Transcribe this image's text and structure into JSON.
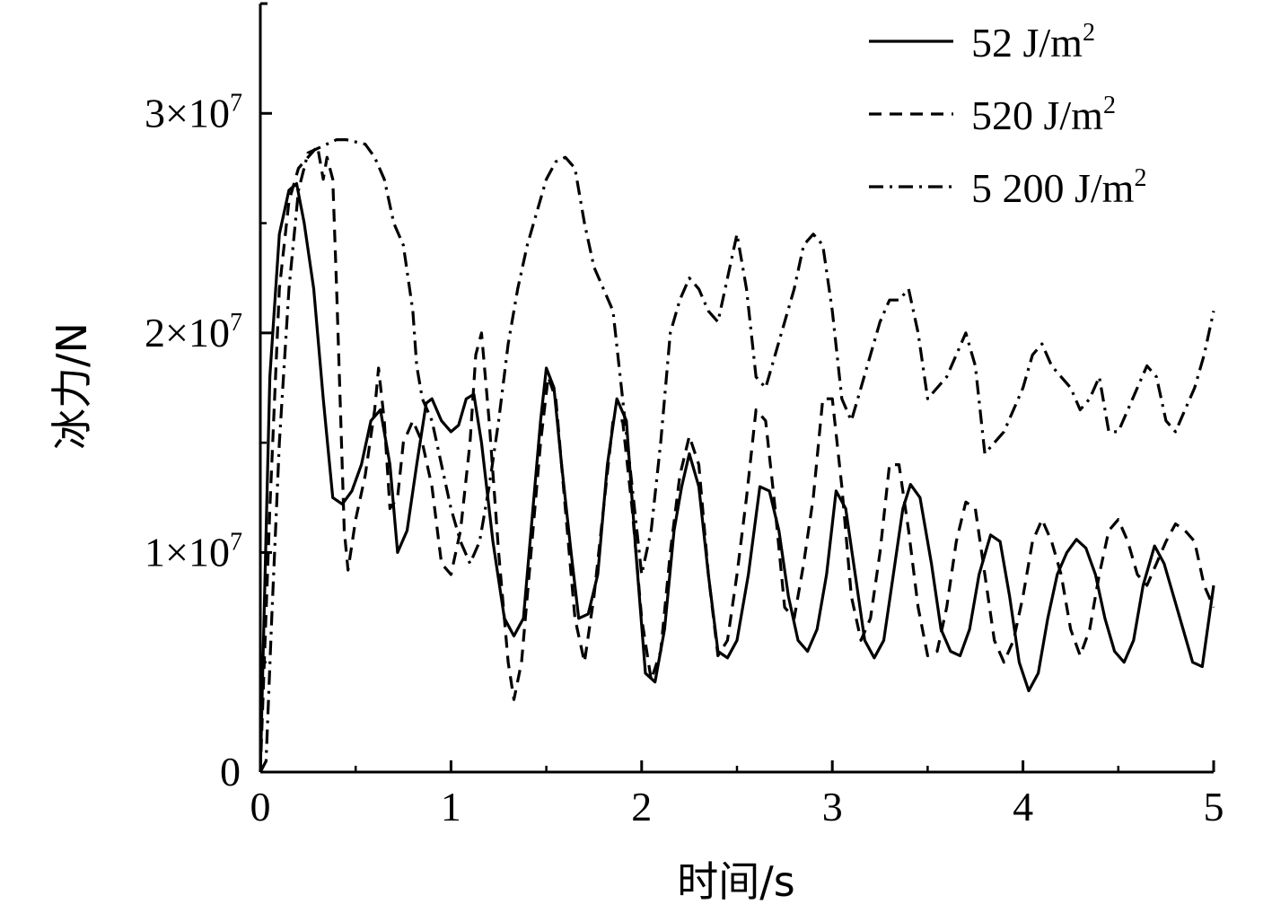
{
  "chart_data": {
    "type": "line",
    "xlabel": "时间/s",
    "ylabel": "冰力/N",
    "xlim": [
      0,
      5
    ],
    "ylim": [
      0,
      35000000
    ],
    "grid": false,
    "legend_position": "top-right",
    "x_ticks": [
      {
        "value": 0,
        "label": "0"
      },
      {
        "value": 1,
        "label": "1"
      },
      {
        "value": 2,
        "label": "2"
      },
      {
        "value": 3,
        "label": "3"
      },
      {
        "value": 4,
        "label": "4"
      },
      {
        "value": 5,
        "label": "5"
      }
    ],
    "y_ticks": [
      {
        "value": 0,
        "mantissa": "0",
        "exp": ""
      },
      {
        "value": 10000000,
        "mantissa": "1×10",
        "exp": "7"
      },
      {
        "value": 20000000,
        "mantissa": "2×10",
        "exp": "7"
      },
      {
        "value": 30000000,
        "mantissa": "3×10",
        "exp": "7"
      }
    ],
    "series": [
      {
        "name": "52 J/m",
        "name_sup": "2",
        "dash": "solid",
        "color": "#000000",
        "x": [
          0,
          0.05,
          0.1,
          0.15,
          0.19,
          0.23,
          0.28,
          0.33,
          0.38,
          0.43,
          0.48,
          0.53,
          0.58,
          0.63,
          0.68,
          0.72,
          0.77,
          0.82,
          0.87,
          0.9,
          0.95,
          1.0,
          1.04,
          1.08,
          1.12,
          1.16,
          1.22,
          1.28,
          1.33,
          1.38,
          1.43,
          1.47,
          1.5,
          1.54,
          1.58,
          1.63,
          1.67,
          1.72,
          1.77,
          1.82,
          1.87,
          1.92,
          1.97,
          2.02,
          2.07,
          2.12,
          2.17,
          2.21,
          2.25,
          2.3,
          2.35,
          2.4,
          2.45,
          2.5,
          2.56,
          2.62,
          2.67,
          2.72,
          2.77,
          2.82,
          2.87,
          2.92,
          2.97,
          3.02,
          3.07,
          3.12,
          3.17,
          3.22,
          3.27,
          3.32,
          3.37,
          3.41,
          3.46,
          3.52,
          3.57,
          3.62,
          3.67,
          3.72,
          3.77,
          3.83,
          3.88,
          3.93,
          3.98,
          4.03,
          4.08,
          4.13,
          4.18,
          4.23,
          4.28,
          4.33,
          4.38,
          4.43,
          4.48,
          4.53,
          4.58,
          4.63,
          4.69,
          4.74,
          4.79,
          4.84,
          4.89,
          4.94,
          5.0
        ],
        "y": [
          0,
          18000000,
          24500000,
          26500000,
          26800000,
          25000000,
          22000000,
          17000000,
          12500000,
          12200000,
          12800000,
          14000000,
          16000000,
          16500000,
          14000000,
          10000000,
          11000000,
          14000000,
          16800000,
          17000000,
          16000000,
          15500000,
          15800000,
          17000000,
          17200000,
          15000000,
          10500000,
          7000000,
          6200000,
          7000000,
          12000000,
          16000000,
          18400000,
          17500000,
          14000000,
          10000000,
          7000000,
          7200000,
          9000000,
          14000000,
          17000000,
          16000000,
          10000000,
          4500000,
          4100000,
          6500000,
          11000000,
          13000000,
          14500000,
          13000000,
          9000000,
          5500000,
          5200000,
          6000000,
          9000000,
          13000000,
          12800000,
          11000000,
          8000000,
          6000000,
          5500000,
          6500000,
          9000000,
          12800000,
          12000000,
          9000000,
          6000000,
          5200000,
          6000000,
          9000000,
          12000000,
          13100000,
          12500000,
          9500000,
          6500000,
          5500000,
          5300000,
          6500000,
          9000000,
          10800000,
          10500000,
          8000000,
          5000000,
          3700000,
          4500000,
          7000000,
          9000000,
          10000000,
          10600000,
          10200000,
          9000000,
          7000000,
          5500000,
          5000000,
          6000000,
          8500000,
          10300000,
          9500000,
          8000000,
          6500000,
          5000000,
          4800000,
          8500000
        ]
      },
      {
        "name": "520 J/m",
        "name_sup": "2",
        "dash": "dashed",
        "color": "#000000",
        "x": [
          0,
          0.05,
          0.1,
          0.15,
          0.2,
          0.25,
          0.28,
          0.3,
          0.33,
          0.35,
          0.38,
          0.4,
          0.44,
          0.46,
          0.5,
          0.55,
          0.6,
          0.62,
          0.65,
          0.68,
          0.72,
          0.75,
          0.8,
          0.85,
          0.9,
          0.95,
          1.0,
          1.05,
          1.1,
          1.13,
          1.16,
          1.2,
          1.25,
          1.3,
          1.33,
          1.37,
          1.42,
          1.47,
          1.51,
          1.55,
          1.6,
          1.65,
          1.7,
          1.75,
          1.8,
          1.85,
          1.9,
          1.95,
          2.0,
          2.05,
          2.1,
          2.15,
          2.2,
          2.25,
          2.3,
          2.35,
          2.4,
          2.45,
          2.5,
          2.55,
          2.6,
          2.65,
          2.7,
          2.75,
          2.8,
          2.85,
          2.9,
          2.95,
          3.0,
          3.05,
          3.1,
          3.15,
          3.2,
          3.25,
          3.3,
          3.35,
          3.4,
          3.45,
          3.5,
          3.55,
          3.6,
          3.65,
          3.7,
          3.75,
          3.8,
          3.85,
          3.9,
          3.95,
          4.0,
          4.05,
          4.1,
          4.15,
          4.2,
          4.25,
          4.3,
          4.35,
          4.4,
          4.45,
          4.5,
          4.55,
          4.6,
          4.65,
          4.7,
          4.75,
          4.8,
          4.85,
          4.9,
          4.95,
          5.0
        ],
        "y": [
          0,
          12000000,
          22000000,
          26000000,
          27500000,
          28000000,
          28300000,
          28500000,
          27000000,
          28000000,
          27000000,
          22000000,
          11000000,
          9200000,
          11500000,
          13500000,
          16500000,
          18400000,
          16000000,
          12000000,
          12500000,
          15000000,
          16000000,
          15000000,
          13000000,
          9500000,
          9000000,
          11000000,
          15000000,
          19000000,
          20000000,
          16000000,
          10000000,
          5000000,
          3300000,
          5000000,
          10000000,
          15000000,
          18000000,
          17000000,
          12000000,
          7000000,
          5000000,
          8000000,
          12000000,
          16000000,
          16000000,
          12000000,
          7000000,
          4200000,
          5500000,
          10000000,
          13500000,
          15300000,
          14000000,
          9000000,
          5300000,
          6000000,
          9000000,
          12500000,
          16500000,
          16000000,
          12000000,
          7500000,
          7000000,
          9500000,
          12500000,
          17000000,
          17000000,
          13000000,
          8000000,
          6000000,
          7000000,
          10000000,
          14000000,
          14000000,
          11000000,
          7500000,
          5300000,
          5500000,
          7500000,
          10500000,
          12300000,
          12000000,
          9000000,
          6000000,
          5000000,
          6000000,
          8000000,
          10500000,
          11500000,
          10500000,
          9000000,
          6500000,
          5300000,
          6500000,
          9000000,
          11000000,
          11500000,
          10500000,
          9000000,
          8500000,
          9500000,
          10500000,
          11300000,
          11000000,
          10500000,
          8500000,
          7500000
        ]
      },
      {
        "name": "5 200 J/m",
        "name_sup": "2",
        "dash": "dashdot",
        "color": "#000000",
        "x": [
          0,
          0.03,
          0.06,
          0.1,
          0.15,
          0.2,
          0.25,
          0.3,
          0.35,
          0.4,
          0.45,
          0.5,
          0.55,
          0.6,
          0.65,
          0.7,
          0.75,
          0.8,
          0.82,
          0.85,
          0.9,
          0.95,
          1.0,
          1.05,
          1.1,
          1.15,
          1.2,
          1.25,
          1.3,
          1.35,
          1.4,
          1.45,
          1.5,
          1.55,
          1.6,
          1.65,
          1.7,
          1.75,
          1.8,
          1.85,
          1.9,
          1.95,
          2.0,
          2.05,
          2.1,
          2.15,
          2.2,
          2.25,
          2.3,
          2.35,
          2.4,
          2.45,
          2.5,
          2.55,
          2.6,
          2.65,
          2.7,
          2.75,
          2.8,
          2.85,
          2.9,
          2.95,
          3.0,
          3.05,
          3.1,
          3.15,
          3.2,
          3.25,
          3.3,
          3.35,
          3.4,
          3.45,
          3.5,
          3.55,
          3.6,
          3.65,
          3.7,
          3.75,
          3.8,
          3.85,
          3.9,
          3.95,
          4.0,
          4.05,
          4.1,
          4.15,
          4.2,
          4.25,
          4.3,
          4.35,
          4.4,
          4.45,
          4.5,
          4.55,
          4.6,
          4.65,
          4.7,
          4.75,
          4.8,
          4.85,
          4.9,
          4.95,
          5.0
        ],
        "y": [
          0,
          500000,
          7000000,
          15000000,
          22000000,
          26500000,
          28200000,
          28400000,
          28600000,
          28800000,
          28800000,
          28700000,
          28600000,
          28000000,
          27000000,
          25000000,
          24000000,
          21000000,
          18500000,
          17000000,
          16000000,
          14000000,
          12000000,
          10500000,
          9500000,
          10500000,
          13000000,
          16000000,
          19500000,
          22000000,
          24000000,
          25500000,
          27000000,
          27800000,
          28000000,
          27500000,
          25000000,
          23000000,
          22000000,
          21000000,
          17000000,
          13000000,
          9000000,
          11000000,
          15000000,
          20000000,
          21500000,
          22500000,
          22000000,
          21000000,
          20500000,
          22500000,
          24500000,
          22000000,
          18000000,
          17500000,
          19000000,
          20500000,
          22000000,
          24000000,
          24500000,
          24000000,
          21000000,
          17000000,
          16000000,
          17500000,
          19000000,
          20500000,
          21500000,
          21500000,
          22000000,
          20000000,
          17000000,
          17500000,
          18000000,
          19000000,
          20000000,
          18500000,
          14500000,
          15000000,
          15500000,
          16500000,
          17500000,
          19000000,
          19500000,
          18500000,
          18000000,
          17500000,
          16500000,
          17000000,
          18000000,
          15500000,
          15500000,
          16500000,
          17500000,
          18500000,
          18000000,
          16000000,
          15500000,
          16500000,
          17500000,
          19000000,
          21000000
        ]
      }
    ]
  }
}
